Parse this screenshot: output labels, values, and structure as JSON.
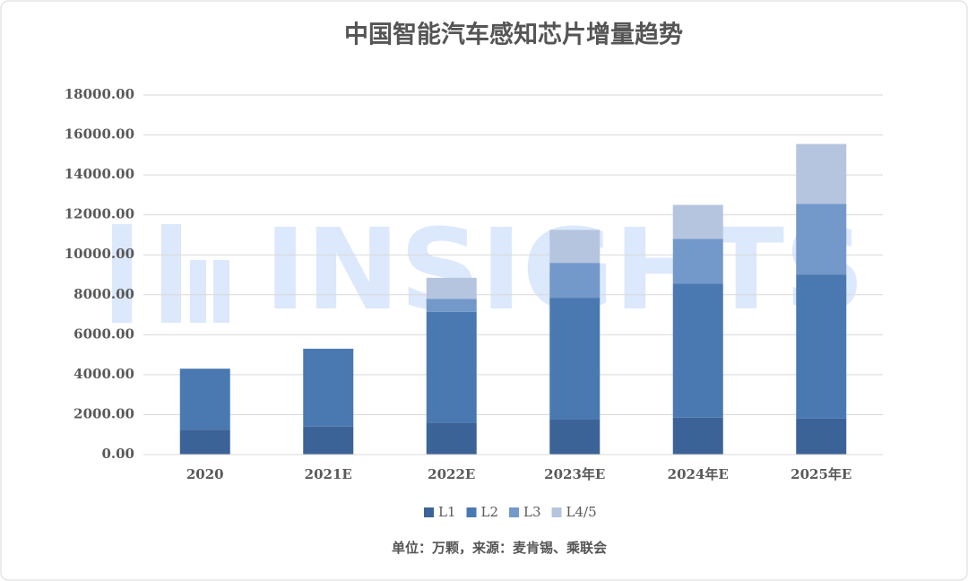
{
  "chart_data": {
    "type": "stacked_bar",
    "title": "中国智能汽车感知芯片增量趋势",
    "note": "单位：万颗，来源：麦肯锡、乘联会",
    "watermark": "INSIGHTS",
    "categories": [
      "2020",
      "2021E",
      "2022E",
      "2023年E",
      "2024年E",
      "2025年E"
    ],
    "series": [
      {
        "name": "L1",
        "color": "#3c6397",
        "values": [
          1250,
          1400,
          1600,
          1750,
          1850,
          1800
        ]
      },
      {
        "name": "L2",
        "color": "#4a79b1",
        "values": [
          3050,
          3900,
          5550,
          6100,
          6700,
          7200
        ]
      },
      {
        "name": "L3",
        "color": "#7398ca",
        "values": [
          null,
          null,
          650,
          1750,
          2250,
          3550
        ]
      },
      {
        "name": "L4/5",
        "color": "#b6c5df",
        "values": [
          null,
          null,
          1050,
          1650,
          1700,
          3000
        ]
      }
    ],
    "ylim": [
      0,
      18000
    ],
    "yticks": [
      {
        "value": 0,
        "label": "0.00"
      },
      {
        "value": 2000,
        "label": "2000.00"
      },
      {
        "value": 4000,
        "label": "4000.00"
      },
      {
        "value": 6000,
        "label": "6000.00"
      },
      {
        "value": 8000,
        "label": "8000.00"
      },
      {
        "value": 10000,
        "label": "10000.00"
      },
      {
        "value": 12000,
        "label": "12000.00"
      },
      {
        "value": 14000,
        "label": "14000.00"
      },
      {
        "value": 16000,
        "label": "16000.00"
      },
      {
        "value": 18000,
        "label": "18000.00"
      }
    ],
    "grid": true,
    "legend": "bottom"
  }
}
